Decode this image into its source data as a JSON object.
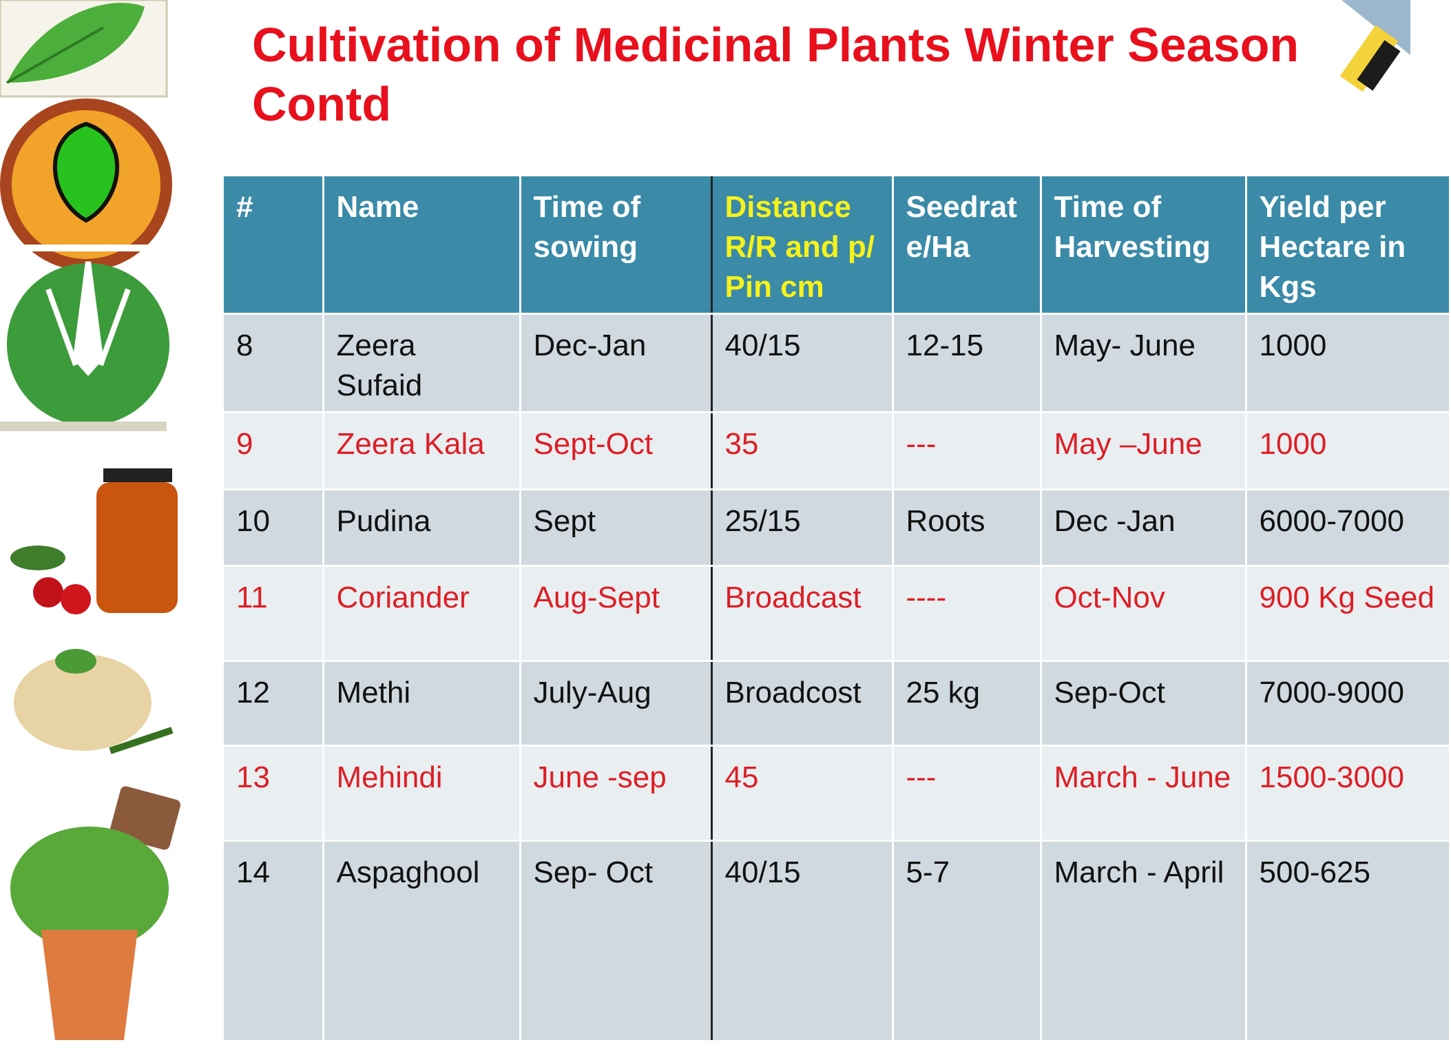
{
  "header": {
    "title": [
      "Cultivation of Medicinal Plants Winter Season",
      "Contd"
    ]
  },
  "table": {
    "columns": [
      "#",
      "Name",
      "Time of sowing",
      "Distance R/R and p/ Pin cm",
      "Seedrate/Ha",
      "Time of Harvesting",
      "Yield per Hectare in Kgs"
    ],
    "rows": [
      [
        "8",
        "Zeera Sufaid",
        "Dec-Jan",
        "40/15",
        "12-15",
        "May- June",
        "1000"
      ],
      [
        "9",
        "Zeera Kala",
        "Sept-Oct",
        "35",
        "---",
        "May –June",
        "1000"
      ],
      [
        "10",
        "Pudina",
        "Sept",
        "25/15",
        "Roots",
        "Dec -Jan",
        "6000-7000"
      ],
      [
        "11",
        "Coriander",
        "Aug-Sept",
        "Broadcast",
        "----",
        "Oct-Nov",
        "900 Kg Seed"
      ],
      [
        "12",
        "Methi",
        "July-Aug",
        "Broadcost",
        "25 kg",
        "Sep-Oct",
        "7000-9000"
      ],
      [
        "13",
        "Mehindi",
        "June -sep",
        "45",
        "---",
        "March - June",
        "1500-3000"
      ],
      [
        "14",
        "Aspaghool",
        "Sep- Oct",
        "40/15",
        "5-7",
        "March - April",
        "500-625"
      ]
    ]
  }
}
